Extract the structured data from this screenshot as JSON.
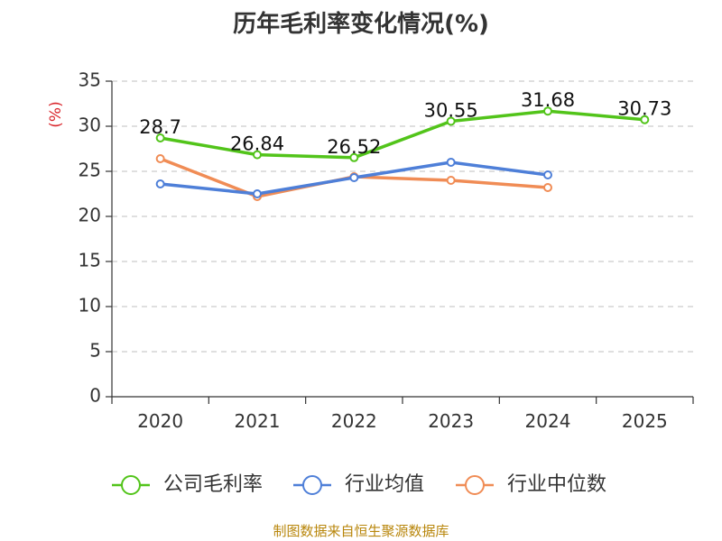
{
  "chart_data": {
    "type": "line",
    "title": "历年毛利率变化情况(%)",
    "ylabel": "(%)",
    "xlabel": "",
    "categories": [
      "2020",
      "2021",
      "2022",
      "2023",
      "2024",
      "2025"
    ],
    "ylim": [
      0,
      35
    ],
    "yticks": [
      0,
      5,
      10,
      15,
      20,
      25,
      30,
      35
    ],
    "grid": true,
    "legend_position": "bottom",
    "series": [
      {
        "name": "公司毛利率",
        "color": "#52c41a",
        "values": [
          28.7,
          26.84,
          26.52,
          30.55,
          31.68,
          30.73
        ],
        "labels": [
          "28.7",
          "26.84",
          "26.52",
          "30.55",
          "31.68",
          "30.73"
        ]
      },
      {
        "name": "行业均值",
        "color": "#4e7fd8",
        "values": [
          23.6,
          22.5,
          24.3,
          26.0,
          24.6,
          null
        ]
      },
      {
        "name": "行业中位数",
        "color": "#f08c55",
        "values": [
          26.4,
          22.2,
          24.4,
          24.0,
          23.2,
          null
        ]
      }
    ]
  },
  "footer": "制图数据来自恒生聚源数据库"
}
